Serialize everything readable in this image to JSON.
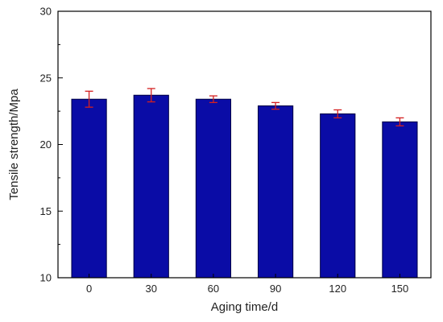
{
  "chart_data": {
    "type": "bar",
    "xlabel": "Aging time/d",
    "ylabel": "Tensile strength/Mpa",
    "categories": [
      "0",
      "30",
      "60",
      "90",
      "120",
      "150"
    ],
    "values": [
      23.4,
      23.7,
      23.4,
      22.9,
      22.3,
      21.7
    ],
    "error": [
      0.6,
      0.5,
      0.25,
      0.25,
      0.3,
      0.3
    ],
    "ylim": [
      10,
      30
    ],
    "yticks": [
      "10",
      "15",
      "20",
      "25",
      "30"
    ],
    "grid": false,
    "legend": "none",
    "colors": {
      "bar_fill": "#0a0ca6",
      "bar_stroke": "#000044",
      "error_bar": "#d42020",
      "axis": "#000000"
    }
  }
}
